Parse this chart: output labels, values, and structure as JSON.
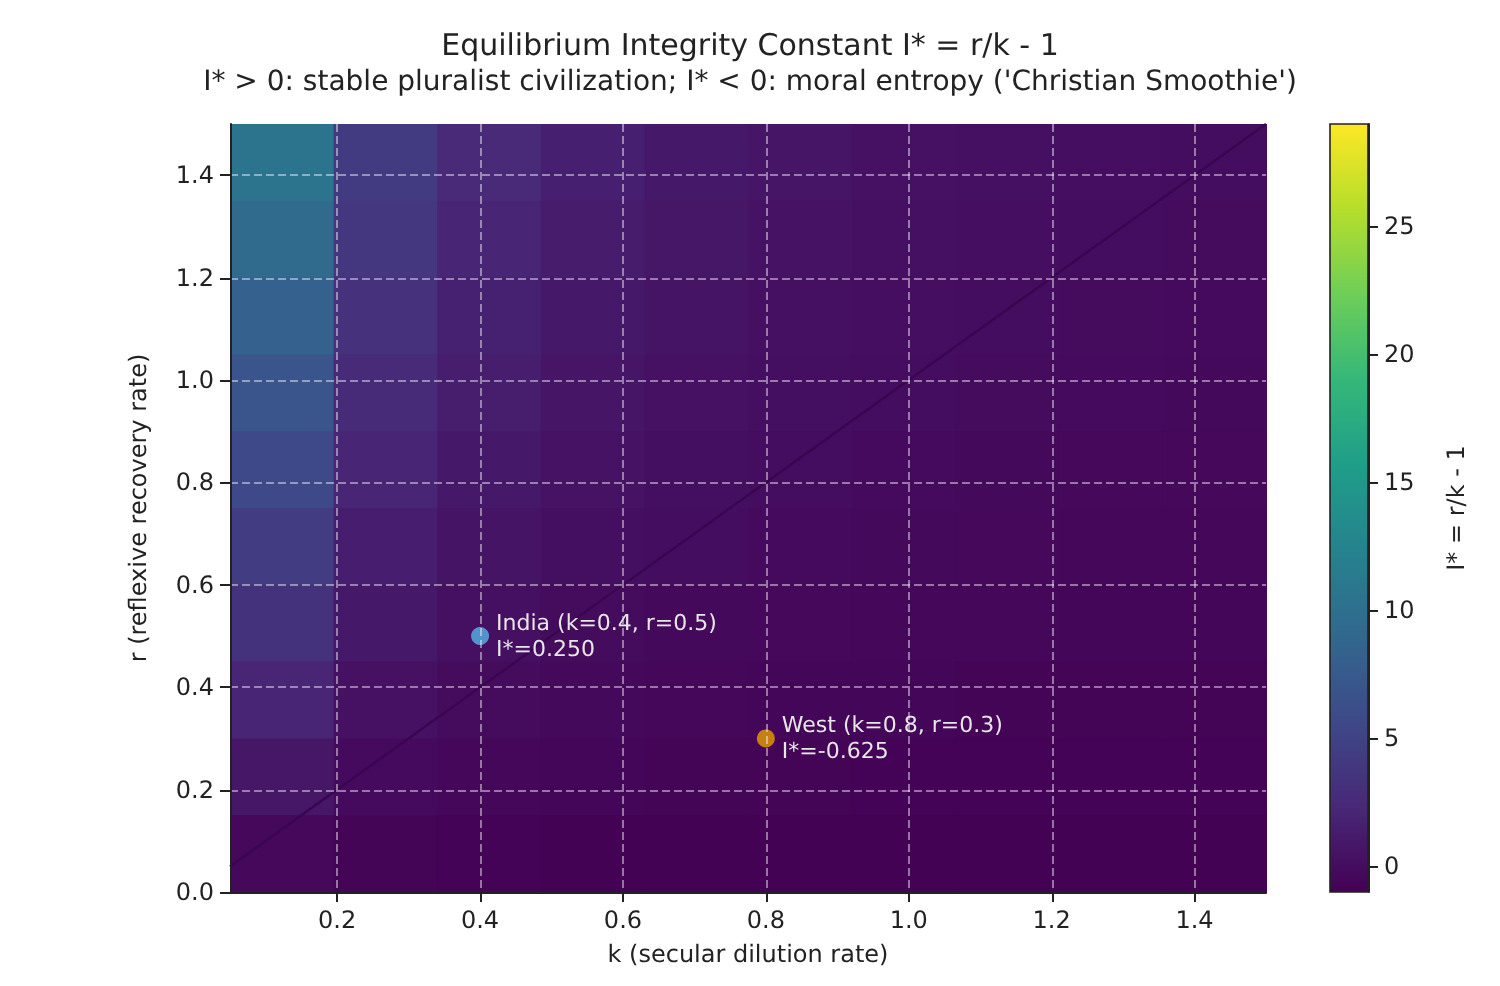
{
  "chart_data": {
    "type": "heatmap",
    "title": "Equilibrium Integrity Constant I* = r/k - 1",
    "subtitle": "I* > 0: stable pluralist civilization; I* < 0: moral entropy ('Christian Smoothie')",
    "xlabel": "k (secular dilution rate)",
    "ylabel": "r (reflexive recovery rate)",
    "clabel": "I* = r/k - 1",
    "x": [
      0.1225,
      0.2675,
      0.4125,
      0.5575,
      0.7025,
      0.8475,
      0.9925,
      1.1375,
      1.2825,
      1.4275
    ],
    "y": [
      1.425,
      1.275,
      1.125,
      0.975,
      0.825,
      0.675,
      0.525,
      0.375,
      0.225,
      0.075
    ],
    "cells": [
      [
        10.6,
        4.3,
        2.5,
        1.6,
        1.0,
        0.7,
        0.4,
        0.3,
        0.1,
        0.0
      ],
      [
        9.4,
        3.8,
        2.1,
        1.3,
        0.8,
        0.5,
        0.3,
        0.1,
        0.0,
        -0.1
      ],
      [
        8.2,
        3.2,
        1.7,
        1.0,
        0.6,
        0.3,
        0.1,
        0.0,
        -0.1,
        -0.2
      ],
      [
        7.0,
        2.6,
        1.4,
        0.7,
        0.4,
        0.2,
        0.0,
        -0.1,
        -0.2,
        -0.3
      ],
      [
        5.7,
        2.1,
        1.0,
        0.5,
        0.2,
        0.0,
        -0.2,
        -0.3,
        -0.4,
        -0.4
      ],
      [
        4.5,
        1.5,
        0.6,
        0.2,
        0.0,
        -0.2,
        -0.3,
        -0.4,
        -0.5,
        -0.5
      ],
      [
        3.3,
        1.0,
        0.3,
        -0.1,
        -0.3,
        -0.4,
        -0.5,
        -0.5,
        -0.6,
        -0.6
      ],
      [
        2.1,
        0.4,
        -0.1,
        -0.3,
        -0.5,
        -0.6,
        -0.6,
        -0.7,
        -0.7,
        -0.7
      ],
      [
        0.8,
        -0.2,
        -0.5,
        -0.6,
        -0.7,
        -0.7,
        -0.8,
        -0.8,
        -0.8,
        -0.8
      ],
      [
        -0.4,
        -0.7,
        -0.8,
        -0.9,
        -0.9,
        -0.9,
        -0.9,
        -0.9,
        -0.9,
        -0.9
      ]
    ],
    "clim": [
      -1,
      29
    ],
    "cticks": [
      0,
      5,
      10,
      15,
      20,
      25
    ],
    "xlim": [
      0.05,
      1.5
    ],
    "xticks": [
      0.2,
      0.4,
      0.6,
      0.8,
      {
        "value": 1,
        "label": "1.0"
      },
      1.2,
      1.4
    ],
    "ylim": [
      0,
      1.5
    ],
    "yticks": [
      {
        "value": 0,
        "label": "0.0"
      },
      0.2,
      0.4,
      0.6,
      0.8,
      {
        "value": 1,
        "label": "1.0"
      },
      1.2,
      1.4
    ],
    "grid": true,
    "series": [
      {
        "type": "line",
        "x": [
          0.05,
          1.5
        ],
        "values": [
          0.05,
          1.5
        ],
        "color": "#3a0650",
        "marker": "none"
      },
      {
        "type": "scatter",
        "x": [
          0.4
        ],
        "values": [
          0.5
        ],
        "color": "#56b4e9",
        "marker": "circle"
      },
      {
        "type": "scatter",
        "x": [
          0.8
        ],
        "values": [
          0.3
        ],
        "color": "#e69f00",
        "marker": "circle"
      }
    ],
    "annotations": [
      {
        "text": "India (k=0.4, r=0.5)\nI*=0.250",
        "x": 0.4,
        "y": 0.5
      },
      {
        "text": "West (k=0.8, r=0.3)\nI*=-0.625",
        "x": 0.8,
        "y": 0.3
      }
    ]
  }
}
